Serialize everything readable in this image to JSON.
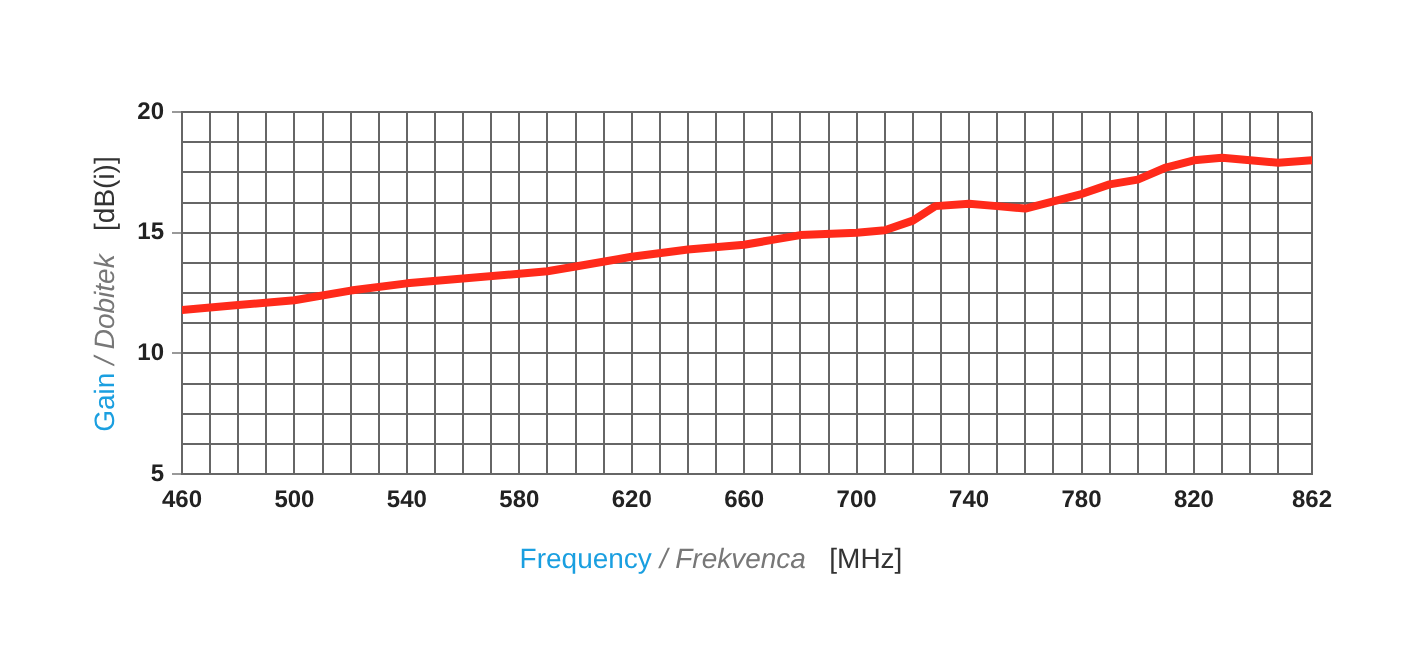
{
  "chart_data": {
    "type": "line",
    "xlabel": "Frequency / Frekvenca   [MHz]",
    "ylabel": "Gain / Dobitek   [dB(i)]",
    "x": [
      460,
      480,
      500,
      520,
      540,
      560,
      580,
      590,
      600,
      620,
      640,
      660,
      670,
      680,
      700,
      710,
      720,
      728,
      740,
      750,
      760,
      780,
      790,
      800,
      810,
      820,
      830,
      840,
      850,
      862
    ],
    "series": [
      {
        "color": "#ff2a1a",
        "values": [
          11.8,
          12.0,
          12.2,
          12.6,
          12.9,
          13.1,
          13.3,
          13.4,
          13.6,
          14.0,
          14.3,
          14.5,
          14.7,
          14.9,
          15.0,
          15.1,
          15.5,
          16.1,
          16.2,
          16.1,
          16.0,
          16.6,
          17.0,
          17.2,
          17.7,
          18.0,
          18.1,
          18.0,
          17.9,
          18.0
        ]
      }
    ],
    "xlim": [
      460,
      862
    ],
    "xticks": [
      460,
      {
        "value": 470,
        "label": null
      },
      {
        "value": 480,
        "label": null
      },
      {
        "value": 490,
        "label": null
      },
      500,
      {
        "value": 510,
        "label": null
      },
      {
        "value": 520,
        "label": null
      },
      {
        "value": 530,
        "label": null
      },
      540,
      {
        "value": 550,
        "label": null
      },
      {
        "value": 560,
        "label": null
      },
      {
        "value": 570,
        "label": null
      },
      580,
      {
        "value": 590,
        "label": null
      },
      {
        "value": 600,
        "label": null
      },
      {
        "value": 610,
        "label": null
      },
      620,
      {
        "value": 630,
        "label": null
      },
      {
        "value": 640,
        "label": null
      },
      {
        "value": 650,
        "label": null
      },
      660,
      {
        "value": 670,
        "label": null
      },
      {
        "value": 680,
        "label": null
      },
      {
        "value": 690,
        "label": null
      },
      700,
      {
        "value": 710,
        "label": null
      },
      {
        "value": 720,
        "label": null
      },
      {
        "value": 730,
        "label": null
      },
      740,
      {
        "value": 750,
        "label": null
      },
      {
        "value": 760,
        "label": null
      },
      {
        "value": 770,
        "label": null
      },
      780,
      {
        "value": 790,
        "label": null
      },
      {
        "value": 800,
        "label": null
      },
      {
        "value": 810,
        "label": null
      },
      820,
      {
        "value": 830,
        "label": null
      },
      {
        "value": 840,
        "label": null
      },
      {
        "value": 850,
        "label": null
      },
      862
    ],
    "ylim": [
      5,
      20
    ],
    "yticks": [
      5,
      {
        "value": 6.25,
        "label": null
      },
      {
        "value": 7.5,
        "label": null
      },
      {
        "value": 8.75,
        "label": null
      },
      10,
      {
        "value": 11.25,
        "label": null
      },
      {
        "value": 12.5,
        "label": null
      },
      {
        "value": 13.75,
        "label": null
      },
      15,
      {
        "value": 16.25,
        "label": null
      },
      {
        "value": 17.5,
        "label": null
      },
      {
        "value": 18.75,
        "label": null
      },
      20
    ],
    "grid": true,
    "legend": false,
    "marker": "none",
    "line_style": "solid"
  }
}
